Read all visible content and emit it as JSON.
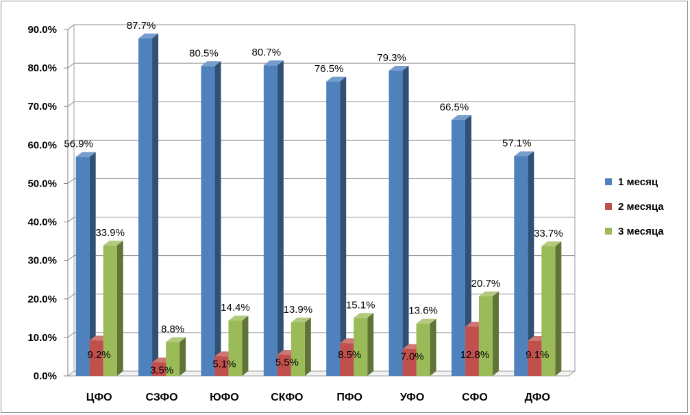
{
  "chart_data": {
    "type": "bar",
    "categories": [
      "ЦФО",
      "СЗФО",
      "ЮФО",
      "СКФО",
      "ПФО",
      "УФО",
      "СФО",
      "ДФО"
    ],
    "series": [
      {
        "name": "1 месяц",
        "color": "#4F81BD",
        "values": [
          56.9,
          87.7,
          80.5,
          80.7,
          76.5,
          79.3,
          66.5,
          57.1
        ],
        "labels": [
          "56.9%",
          "87.7%",
          "80.5%",
          "80.7%",
          "76.5%",
          "79.3%",
          "66.5%",
          "57.1%"
        ]
      },
      {
        "name": "2 месяца",
        "color": "#C0504D",
        "values": [
          9.2,
          3.5,
          5.1,
          5.5,
          8.5,
          7.0,
          12.8,
          9.1
        ],
        "labels": [
          "9.2%",
          "3.5%",
          "5.1%",
          "5.5%",
          "8.5%",
          "7.0%",
          "12.8%",
          "9.1%"
        ]
      },
      {
        "name": "3 месяца",
        "color": "#9BBB59",
        "values": [
          33.9,
          8.8,
          14.4,
          13.9,
          15.1,
          13.6,
          20.7,
          33.7
        ],
        "labels": [
          "33.9%",
          "8.8%",
          "14.4%",
          "13.9%",
          "15.1%",
          "13.6%",
          "20.7%",
          "33.7%"
        ]
      }
    ],
    "yticks": [
      "0.0%",
      "10.0%",
      "20.0%",
      "30.0%",
      "40.0%",
      "50.0%",
      "60.0%",
      "70.0%",
      "80.0%",
      "90.0%"
    ],
    "ylim": [
      0,
      90
    ],
    "grid": true,
    "legend_position": "right",
    "style": "3d-clustered-column"
  }
}
